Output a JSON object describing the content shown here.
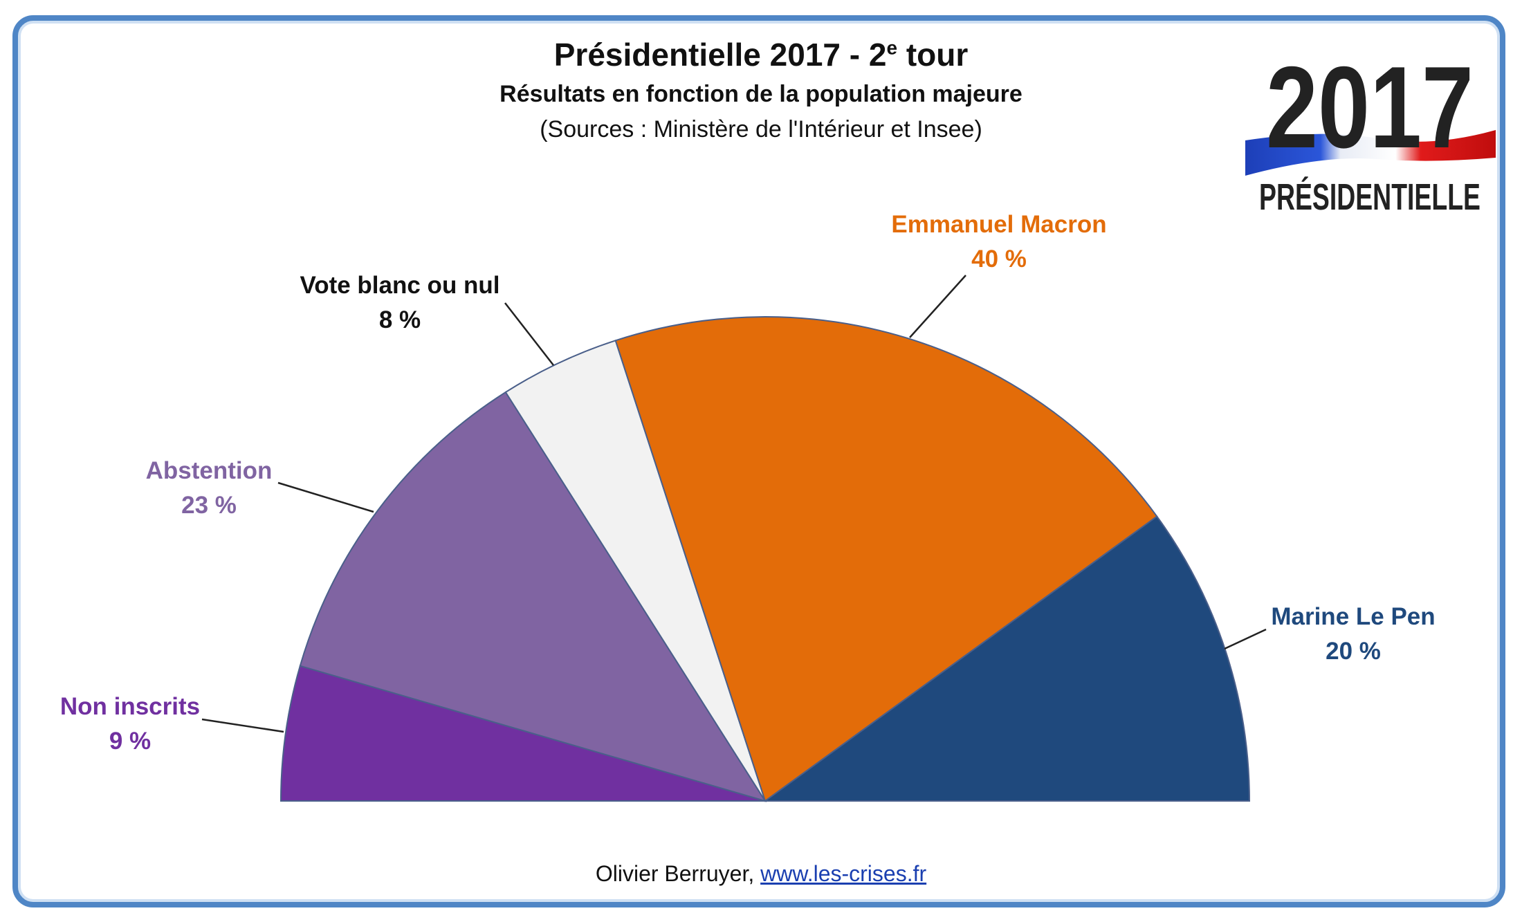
{
  "chart_data": {
    "type": "pie",
    "variant": "semicircle",
    "title": "Présidentielle 2017 - 2",
    "title_sup": "e",
    "title_suffix": " tour",
    "subtitle": "Résultats en fonction de la population majeure",
    "source": "(Sources : Ministère de l'Intérieur et Insee)",
    "slices": [
      {
        "name": "Non inscrits",
        "value": 9,
        "label": "9 %",
        "color": "#7030a0"
      },
      {
        "name": "Abstention",
        "value": 23,
        "label": "23 %",
        "color": "#8064a2"
      },
      {
        "name": "Vote blanc ou nul",
        "value": 8,
        "label": "8 %",
        "color": "#f2f2f2"
      },
      {
        "name": "Emmanuel Macron",
        "value": 40,
        "label": "40 %",
        "color": "#e36c09"
      },
      {
        "name": "Marine Le Pen",
        "value": 20,
        "label": "20 %",
        "color": "#1f497d"
      }
    ]
  },
  "logo": {
    "year": "2017",
    "word": "PRÉSIDENTIELLE"
  },
  "footer": {
    "author": "Olivier Berruyer, ",
    "link_text": "www.les-crises.fr"
  }
}
